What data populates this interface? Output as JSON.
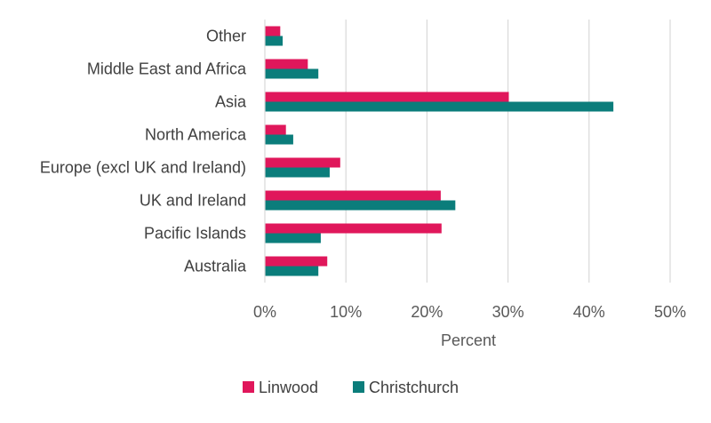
{
  "chart_data": {
    "type": "bar",
    "orientation": "horizontal",
    "title": "",
    "xlabel": "Percent",
    "ylabel": "",
    "xlim": [
      0,
      50
    ],
    "x_ticks": [
      "0%",
      "10%",
      "20%",
      "30%",
      "40%",
      "50%"
    ],
    "x_tick_values": [
      0,
      10,
      20,
      30,
      40,
      50
    ],
    "grid": "vertical",
    "legend": "bottom",
    "categories": [
      "Other",
      "Middle East and Africa",
      "Asia",
      "North America",
      "Europe (excl UK and Ireland)",
      "UK and Ireland",
      "Pacific Islands",
      "Australia"
    ],
    "series": [
      {
        "name": "Linwood",
        "color": "#e0175b",
        "values": [
          1.9,
          5.3,
          30.1,
          2.6,
          9.3,
          21.7,
          21.8,
          7.7
        ]
      },
      {
        "name": "Christchurch",
        "color": "#0b7d7b",
        "values": [
          2.2,
          6.6,
          43.0,
          3.5,
          8.0,
          23.5,
          6.9,
          6.6
        ]
      }
    ]
  }
}
